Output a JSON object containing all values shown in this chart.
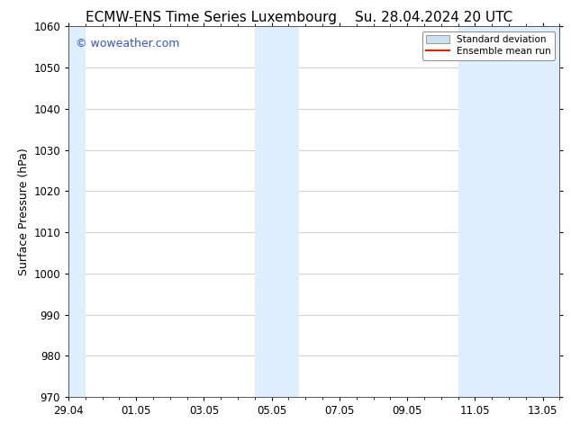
{
  "title_left": "ECMW-ENS Time Series Luxembourg",
  "title_right": "Su. 28.04.2024 20 UTC",
  "ylabel": "Surface Pressure (hPa)",
  "ylim": [
    970,
    1060
  ],
  "yticks": [
    970,
    980,
    990,
    1000,
    1010,
    1020,
    1030,
    1040,
    1050,
    1060
  ],
  "xtick_labels": [
    "29.04",
    "01.05",
    "03.05",
    "05.05",
    "07.05",
    "09.05",
    "11.05",
    "13.05"
  ],
  "xtick_positions": [
    0,
    2,
    4,
    6,
    8,
    10,
    12,
    14
  ],
  "xlim": [
    0,
    14.5
  ],
  "shaded_bands": [
    {
      "x_start": -0.2,
      "x_end": 0.5
    },
    {
      "x_start": 5.5,
      "x_end": 6.8
    },
    {
      "x_start": 11.5,
      "x_end": 14.5
    }
  ],
  "shaded_color": "#ddeeff",
  "background_color": "#ffffff",
  "grid_color": "#bbbbbb",
  "watermark_text": "© woweather.com",
  "watermark_color": "#3355cc",
  "legend_std_dev_label": "Standard deviation",
  "legend_mean_label": "Ensemble mean run",
  "legend_std_color": "#cce0f0",
  "legend_mean_color": "#dd2200",
  "title_fontsize": 11,
  "axis_label_fontsize": 9,
  "tick_fontsize": 8.5,
  "watermark_fontsize": 9
}
